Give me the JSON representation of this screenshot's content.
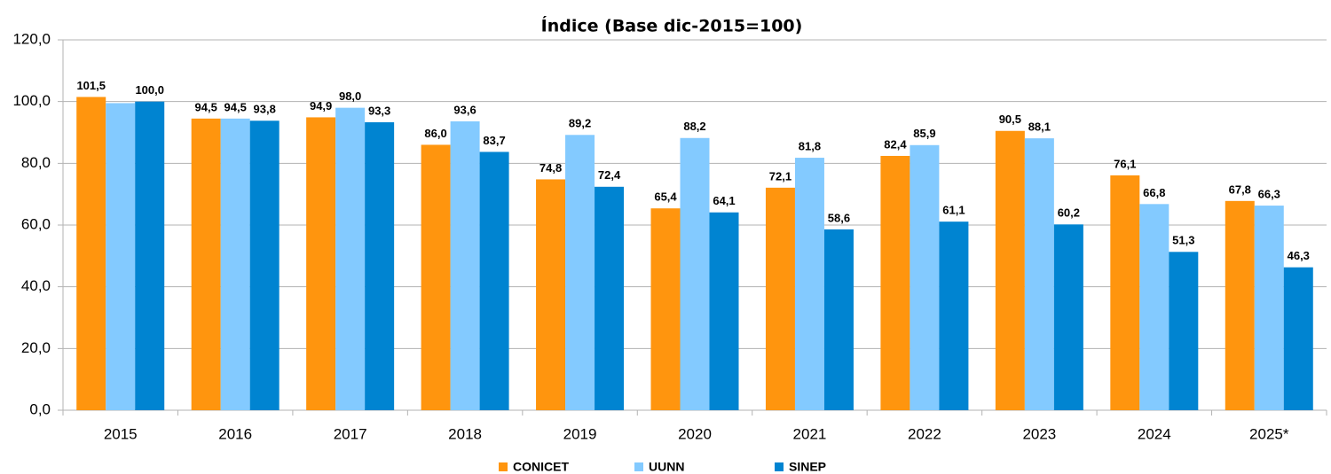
{
  "chart_data": {
    "type": "bar",
    "title": "Índice (Base dic-2015=100)",
    "categories": [
      "2015",
      "2016",
      "2017",
      "2018",
      "2019",
      "2020",
      "2021",
      "2022",
      "2023",
      "2024",
      "2025*"
    ],
    "series": [
      {
        "name": "CONICET",
        "color": "#ff950e",
        "values": [
          101.5,
          94.5,
          94.9,
          86.0,
          74.8,
          65.4,
          72.1,
          82.4,
          90.5,
          76.1,
          67.8
        ],
        "value_labels": [
          "101,5",
          "94,5",
          "94,9",
          "86,0",
          "74,8",
          "65,4",
          "72,1",
          "82,4",
          "90,5",
          "76,1",
          "67,8"
        ]
      },
      {
        "name": "UUNN",
        "color": "#83caff",
        "values": [
          99.5,
          94.5,
          98.0,
          93.6,
          89.2,
          88.2,
          81.8,
          85.9,
          88.1,
          66.8,
          66.3
        ],
        "value_labels": [
          null,
          "94,5",
          "98,0",
          "93,6",
          "89,2",
          "88,2",
          "81,8",
          "85,9",
          "88,1",
          "66,8",
          "66,3"
        ]
      },
      {
        "name": "SINEP",
        "color": "#0084d1",
        "values": [
          100.0,
          93.8,
          93.3,
          83.7,
          72.4,
          64.1,
          58.6,
          61.1,
          60.2,
          51.3,
          46.3
        ],
        "value_labels": [
          "100,0",
          "93,8",
          "93,3",
          "83,7",
          "72,4",
          "64,1",
          "58,6",
          "61,1",
          "60,2",
          "51,3",
          "46,3"
        ]
      }
    ],
    "ylim": [
      0,
      120
    ],
    "yticks": [
      {
        "value": 0,
        "label": "0,0"
      },
      {
        "value": 20,
        "label": "20,0"
      },
      {
        "value": 40,
        "label": "40,0"
      },
      {
        "value": 60,
        "label": "60,0"
      },
      {
        "value": 80,
        "label": "80,0"
      },
      {
        "value": 100,
        "label": "100,0"
      },
      {
        "value": 120,
        "label": "120,0"
      }
    ],
    "grid": true,
    "legend": "bottom"
  }
}
